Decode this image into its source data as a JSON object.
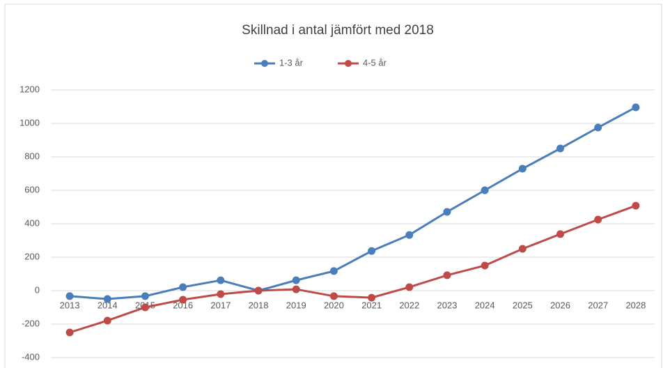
{
  "chart_data": {
    "type": "line",
    "title": "Skillnad i antal jämfört med 2018",
    "categories": [
      "2013",
      "2014",
      "2015",
      "2016",
      "2017",
      "2018",
      "2019",
      "2020",
      "2021",
      "2022",
      "2023",
      "2024",
      "2025",
      "2026",
      "2027",
      "2028"
    ],
    "series": [
      {
        "name": "1-3 år",
        "color": "#4a7ebb",
        "values": [
          -33,
          -50,
          -33,
          21,
          62,
          0,
          62,
          117,
          237,
          333,
          471,
          600,
          729,
          850,
          975,
          1096
        ]
      },
      {
        "name": "4-5 år",
        "color": "#be4b48",
        "values": [
          -250,
          -179,
          -100,
          -54,
          -21,
          0,
          8,
          -33,
          -42,
          21,
          92,
          150,
          250,
          338,
          425,
          508
        ]
      }
    ],
    "ylim": [
      -400,
      1200
    ],
    "yticks": [
      -400,
      -200,
      0,
      200,
      400,
      600,
      800,
      1000,
      1200
    ],
    "grid": true,
    "legend": "top"
  }
}
